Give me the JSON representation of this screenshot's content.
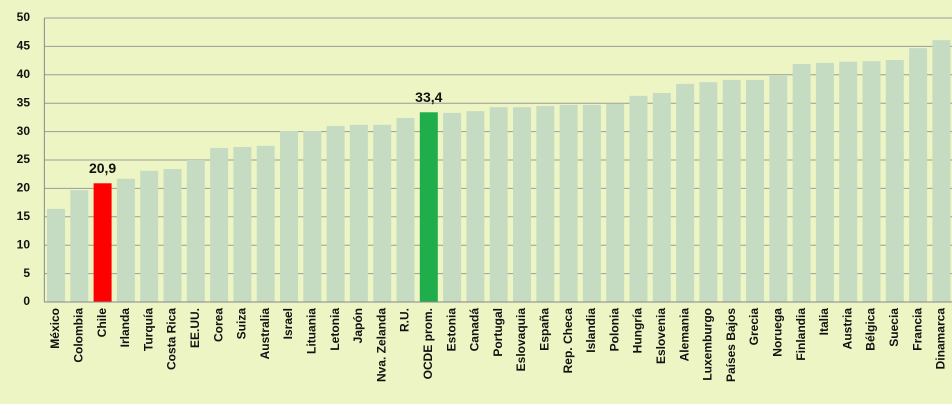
{
  "chart_data": {
    "type": "bar",
    "categories": [
      "México",
      "Colombia",
      "Chile",
      "Irlanda",
      "Turquía",
      "Costa Rica",
      "EE.UU.",
      "Corea",
      "Suiza",
      "Australia",
      "Israel",
      "Lituania",
      "Letonia",
      "Japón",
      "Nva. Zelanda",
      "R.U.",
      "OCDE prom.",
      "Estonia",
      "Canadá",
      "Portugal",
      "Eslovaquia",
      "España",
      "Rep. Checa",
      "Islandia",
      "Polonia",
      "Hungría",
      "Eslovenia",
      "Alemania",
      "Luxemburgo",
      "Países Bajos",
      "Grecia",
      "Noruega",
      "Finlandia",
      "Italia",
      "Austria",
      "Bélgica",
      "Suecia",
      "Francia",
      "Dinamarca"
    ],
    "values": [
      16.4,
      19.7,
      20.9,
      21.7,
      23.1,
      23.4,
      25.0,
      27.1,
      27.3,
      27.5,
      30.1,
      30.1,
      31.0,
      31.2,
      31.2,
      32.4,
      33.4,
      33.3,
      33.6,
      34.3,
      34.3,
      34.5,
      34.7,
      34.7,
      34.9,
      36.3,
      36.8,
      38.4,
      38.7,
      39.1,
      39.1,
      39.8,
      41.9,
      42.1,
      42.3,
      42.4,
      42.6,
      44.7,
      46.1
    ],
    "value_labels": [
      null,
      null,
      "20,9",
      null,
      null,
      null,
      null,
      null,
      null,
      null,
      null,
      null,
      null,
      null,
      null,
      null,
      "33,4",
      null,
      null,
      null,
      null,
      null,
      null,
      null,
      null,
      null,
      null,
      null,
      null,
      null,
      null,
      null,
      null,
      null,
      null,
      null,
      null,
      null,
      null
    ],
    "color": "#c5dcc3",
    "highlights": [
      {
        "category": "Chile",
        "color": "#ff0000"
      },
      {
        "category": "OCDE prom.",
        "color": "#1fae4b"
      }
    ],
    "ylim": [
      0,
      50
    ],
    "yticks": [
      0,
      5,
      10,
      15,
      20,
      25,
      30,
      35,
      40,
      45,
      50
    ],
    "grid": true
  }
}
